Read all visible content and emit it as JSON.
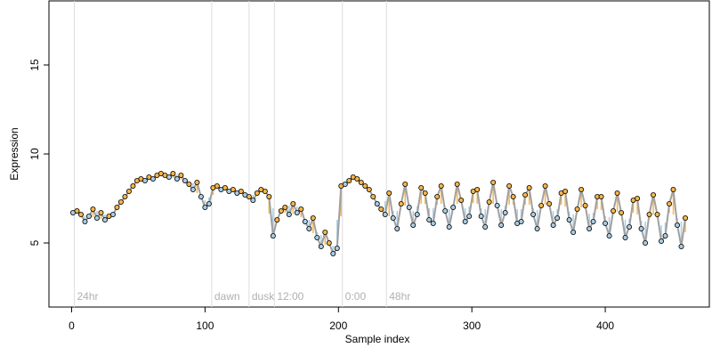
{
  "chart_data": {
    "type": "line",
    "x_label": "Sample index",
    "y_label": "Expression",
    "xlim": [
      -17,
      478
    ],
    "ylim": [
      1.4,
      18.6
    ],
    "xticks": [
      0,
      100,
      200,
      300,
      400
    ],
    "yticks": [
      5,
      10,
      15
    ],
    "line_color": "#a0a0a0",
    "above_color": "#f7b54a",
    "below_color": "#a9cce3",
    "annotations": [
      {
        "x": 2,
        "label": "24hr"
      },
      {
        "x": 105,
        "label": "dawn"
      },
      {
        "x": 133,
        "label": "dusk"
      },
      {
        "x": 152,
        "label": "12:00"
      },
      {
        "x": 203,
        "label": "0:00"
      },
      {
        "x": 236,
        "label": "48hr"
      }
    ],
    "x": [
      1,
      4,
      7,
      10,
      13,
      16,
      19,
      22,
      25,
      28,
      31,
      34,
      37,
      40,
      43,
      46,
      49,
      52,
      55,
      58,
      61,
      64,
      67,
      70,
      73,
      76,
      79,
      82,
      85,
      88,
      91,
      94,
      97,
      100,
      103,
      106,
      109,
      112,
      115,
      118,
      121,
      124,
      127,
      130,
      133,
      136,
      139,
      142,
      145,
      148,
      151,
      154,
      157,
      160,
      163,
      166,
      169,
      172,
      175,
      178,
      181,
      184,
      187,
      190,
      193,
      196,
      199,
      202,
      205,
      208,
      211,
      214,
      217,
      220,
      223,
      226,
      229,
      232,
      235,
      238,
      241,
      244,
      247,
      250,
      253,
      256,
      259,
      262,
      265,
      268,
      271,
      274,
      277,
      280,
      283,
      286,
      289,
      292,
      295,
      298,
      301,
      304,
      307,
      310,
      313,
      316,
      319,
      322,
      325,
      328,
      331,
      334,
      337,
      340,
      343,
      346,
      349,
      352,
      355,
      358,
      361,
      364,
      367,
      370,
      373,
      376,
      379,
      382,
      385,
      388,
      391,
      394,
      397,
      400,
      403,
      406,
      409,
      412,
      415,
      418,
      421,
      424,
      427,
      430,
      433,
      436,
      439,
      442,
      445,
      448,
      451,
      454,
      457,
      460
    ],
    "values": [
      6.7,
      6.8,
      6.6,
      6.2,
      6.5,
      6.9,
      6.4,
      6.7,
      6.3,
      6.5,
      6.6,
      7.0,
      7.3,
      7.6,
      7.9,
      8.2,
      8.5,
      8.6,
      8.5,
      8.7,
      8.6,
      8.8,
      8.9,
      8.8,
      8.7,
      8.9,
      8.6,
      8.8,
      8.5,
      8.3,
      8.0,
      8.4,
      7.6,
      7.0,
      7.2,
      8.1,
      8.2,
      8.0,
      8.1,
      7.9,
      8.0,
      7.8,
      7.9,
      7.7,
      7.6,
      7.4,
      7.8,
      8.0,
      7.9,
      7.6,
      5.4,
      6.3,
      6.8,
      7.0,
      6.6,
      7.2,
      6.7,
      6.9,
      6.2,
      5.8,
      6.4,
      5.3,
      4.8,
      5.6,
      5.0,
      4.4,
      4.7,
      8.2,
      8.3,
      8.5,
      8.7,
      8.6,
      8.4,
      8.2,
      8.0,
      7.6,
      7.2,
      6.9,
      6.6,
      7.8,
      6.4,
      5.8,
      7.2,
      8.3,
      7.0,
      6.0,
      6.6,
      8.1,
      7.8,
      6.3,
      6.1,
      7.6,
      8.2,
      6.8,
      5.9,
      7.0,
      8.3,
      7.4,
      6.2,
      6.5,
      7.9,
      8.0,
      6.5,
      5.9,
      7.3,
      8.4,
      7.1,
      6.0,
      6.7,
      8.2,
      7.6,
      6.1,
      6.2,
      7.7,
      8.1,
      6.6,
      5.8,
      7.1,
      8.2,
      7.2,
      6.0,
      6.4,
      7.8,
      7.9,
      6.3,
      5.6,
      6.9,
      8.0,
      7.1,
      5.8,
      6.2,
      7.6,
      7.6,
      6.1,
      5.4,
      6.8,
      7.8,
      6.7,
      5.3,
      5.9,
      7.4,
      7.5,
      5.8,
      5.0,
      6.6,
      7.7,
      6.6,
      5.1,
      5.4,
      7.2,
      8.0,
      6.0,
      4.8,
      6.4
    ]
  }
}
